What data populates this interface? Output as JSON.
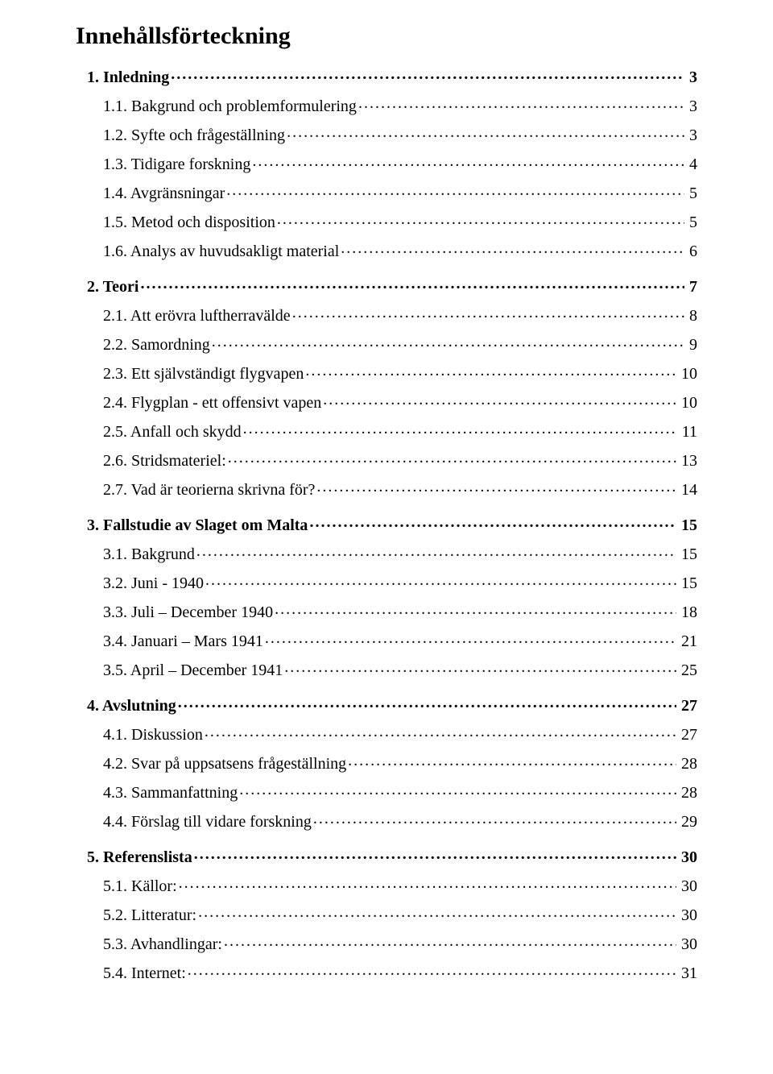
{
  "title": "Innehållsförteckning",
  "font_family": "Times New Roman",
  "colors": {
    "text": "#000000",
    "background": "#ffffff"
  },
  "font_sizes_pt": {
    "title": 22,
    "level1": 15,
    "level2": 15
  },
  "entries": [
    {
      "level": 1,
      "label": "1. Inledning",
      "page": "3"
    },
    {
      "level": 2,
      "label": "1.1. Bakgrund och problemformulering",
      "page": "3"
    },
    {
      "level": 2,
      "label": "1.2. Syfte och frågeställning",
      "page": "3"
    },
    {
      "level": 2,
      "label": "1.3. Tidigare forskning",
      "page": "4"
    },
    {
      "level": 2,
      "label": "1.4. Avgränsningar",
      "page": "5"
    },
    {
      "level": 2,
      "label": "1.5. Metod och disposition",
      "page": "5"
    },
    {
      "level": 2,
      "label": "1.6. Analys av huvudsakligt material",
      "page": "6"
    },
    {
      "level": 1,
      "label": "2. Teori",
      "page": "7"
    },
    {
      "level": 2,
      "label": "2.1. Att erövra luftherravälde",
      "page": "8"
    },
    {
      "level": 2,
      "label": "2.2. Samordning",
      "page": "9"
    },
    {
      "level": 2,
      "label": "2.3. Ett självständigt flygvapen",
      "page": "10"
    },
    {
      "level": 2,
      "label": "2.4. Flygplan - ett offensivt vapen",
      "page": "10"
    },
    {
      "level": 2,
      "label": "2.5. Anfall och skydd",
      "page": "11"
    },
    {
      "level": 2,
      "label": "2.6. Stridsmateriel:",
      "page": "13"
    },
    {
      "level": 2,
      "label": "2.7. Vad är teorierna skrivna för?",
      "page": "14"
    },
    {
      "level": 1,
      "label": "3. Fallstudie av Slaget om Malta",
      "page": "15"
    },
    {
      "level": 2,
      "label": "3.1. Bakgrund",
      "page": "15"
    },
    {
      "level": 2,
      "label": "3.2. Juni - 1940",
      "page": "15"
    },
    {
      "level": 2,
      "label": "3.3. Juli – December 1940",
      "page": "18"
    },
    {
      "level": 2,
      "label": "3.4. Januari – Mars 1941",
      "page": "21"
    },
    {
      "level": 2,
      "label": "3.5. April – December 1941",
      "page": "25"
    },
    {
      "level": 1,
      "label": "4. Avslutning",
      "page": "27"
    },
    {
      "level": 2,
      "label": "4.1. Diskussion",
      "page": "27"
    },
    {
      "level": 2,
      "label": "4.2. Svar på uppsatsens frågeställning",
      "page": "28"
    },
    {
      "level": 2,
      "label": "4.3. Sammanfattning",
      "page": "28"
    },
    {
      "level": 2,
      "label": "4.4. Förslag till vidare forskning",
      "page": "29"
    },
    {
      "level": 1,
      "label": "5. Referenslista",
      "page": "30"
    },
    {
      "level": 2,
      "label": "5.1. Källor:",
      "page": "30"
    },
    {
      "level": 2,
      "label": "5.2. Litteratur:",
      "page": "30"
    },
    {
      "level": 2,
      "label": "5.3. Avhandlingar:",
      "page": "30"
    },
    {
      "level": 2,
      "label": "5.4. Internet:",
      "page": "31"
    }
  ]
}
